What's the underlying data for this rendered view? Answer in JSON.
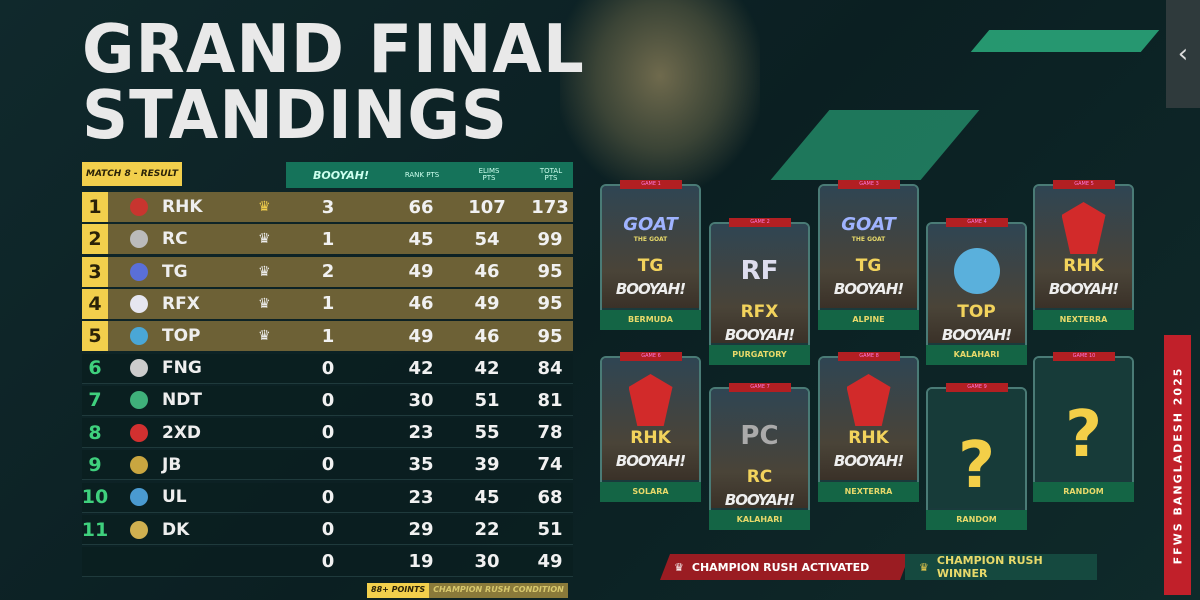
{
  "title": {
    "line1": "GRAND FINAL",
    "line2": "STANDINGS"
  },
  "match_label": "MATCH 8 - RESULT",
  "columns": {
    "booyah": "BOOYAH!",
    "rank": "RANK PTS",
    "elims": "ELIMS PTS",
    "total": "TOTAL PTS"
  },
  "standings": [
    {
      "rank": "1",
      "team": "RHK",
      "booyah": "3",
      "rank_pts": "66",
      "elims": "107",
      "total": "173",
      "top": true,
      "logo_color": "#c8352f"
    },
    {
      "rank": "2",
      "team": "RC",
      "booyah": "1",
      "rank_pts": "45",
      "elims": "54",
      "total": "99",
      "top": true,
      "logo_color": "#bbbbbb"
    },
    {
      "rank": "3",
      "team": "TG",
      "booyah": "2",
      "rank_pts": "49",
      "elims": "46",
      "total": "95",
      "top": true,
      "logo_color": "#5a6fd8"
    },
    {
      "rank": "4",
      "team": "RFX",
      "booyah": "1",
      "rank_pts": "46",
      "elims": "49",
      "total": "95",
      "top": true,
      "logo_color": "#e6e6f0"
    },
    {
      "rank": "5",
      "team": "TOP",
      "booyah": "1",
      "rank_pts": "49",
      "elims": "46",
      "total": "95",
      "top": true,
      "logo_color": "#4aa7d6"
    },
    {
      "rank": "6",
      "team": "FNG",
      "booyah": "0",
      "rank_pts": "42",
      "elims": "42",
      "total": "84",
      "top": false,
      "logo_color": "#cccccc"
    },
    {
      "rank": "7",
      "team": "NDT",
      "booyah": "0",
      "rank_pts": "30",
      "elims": "51",
      "total": "81",
      "top": false,
      "logo_color": "#3fb07a"
    },
    {
      "rank": "8",
      "team": "2XD",
      "booyah": "0",
      "rank_pts": "23",
      "elims": "55",
      "total": "78",
      "top": false,
      "logo_color": "#d23030"
    },
    {
      "rank": "9",
      "team": "JB",
      "booyah": "0",
      "rank_pts": "35",
      "elims": "39",
      "total": "74",
      "top": false,
      "logo_color": "#c9a640"
    },
    {
      "rank": "10",
      "team": "UL",
      "booyah": "0",
      "rank_pts": "23",
      "elims": "45",
      "total": "68",
      "top": false,
      "logo_color": "#4a9ad0"
    },
    {
      "rank": "11",
      "team": "DK",
      "booyah": "0",
      "rank_pts": "29",
      "elims": "22",
      "total": "51",
      "top": false,
      "logo_color": "#d0b050"
    },
    {
      "rank": "",
      "team": "",
      "booyah": "0",
      "rank_pts": "19",
      "elims": "30",
      "total": "49",
      "top": false,
      "logo_color": ""
    }
  ],
  "condition": {
    "points": "88+ POINTS",
    "label": "CHAMPION RUSH CONDITION"
  },
  "games": [
    {
      "game": "GAME 1",
      "team": "TG",
      "logo": "GOAT",
      "sub": "THE GOAT",
      "booyah": "BOOYAH!",
      "map": "BERMUDA"
    },
    {
      "game": "GAME 2",
      "team": "RFX",
      "logo": "RF",
      "booyah": "BOOYAH!",
      "map": "PURGATORY"
    },
    {
      "game": "GAME 3",
      "team": "TG",
      "logo": "GOAT",
      "sub": "THE GOAT",
      "booyah": "BOOYAH!",
      "map": "ALPINE"
    },
    {
      "game": "GAME 4",
      "team": "TOP",
      "logo": "",
      "booyah": "BOOYAH!",
      "map": "KALAHARI"
    },
    {
      "game": "GAME 5",
      "team": "RHK",
      "logo": "",
      "booyah": "BOOYAH!",
      "map": "NEXTERRA"
    },
    {
      "game": "GAME 6",
      "team": "RHK",
      "logo": "",
      "booyah": "BOOYAH!",
      "map": "SOLARA"
    },
    {
      "game": "GAME 7",
      "team": "RC",
      "logo": "PC",
      "booyah": "BOOYAH!",
      "map": "KALAHARI"
    },
    {
      "game": "GAME 8",
      "team": "RHK",
      "logo": "",
      "booyah": "BOOYAH!",
      "map": "NEXTERRA"
    },
    {
      "game": "GAME 9",
      "team": "?",
      "map": "RANDOM"
    },
    {
      "game": "GAME 10",
      "team": "?",
      "map": "RANDOM"
    }
  ],
  "legend": {
    "activated": "CHAMPION RUSH ACTIVATED",
    "winner": "CHAMPION RUSH WINNER"
  },
  "event": "FFWS BANGLADESH 2025",
  "colors": {
    "gold": "#f2cf4c",
    "green": "#15735a",
    "red": "#c1202a",
    "rank_green": "#3fd07d"
  },
  "icons": {
    "crown": "crown-icon",
    "panel_toggle": "chevron-left-icon"
  }
}
